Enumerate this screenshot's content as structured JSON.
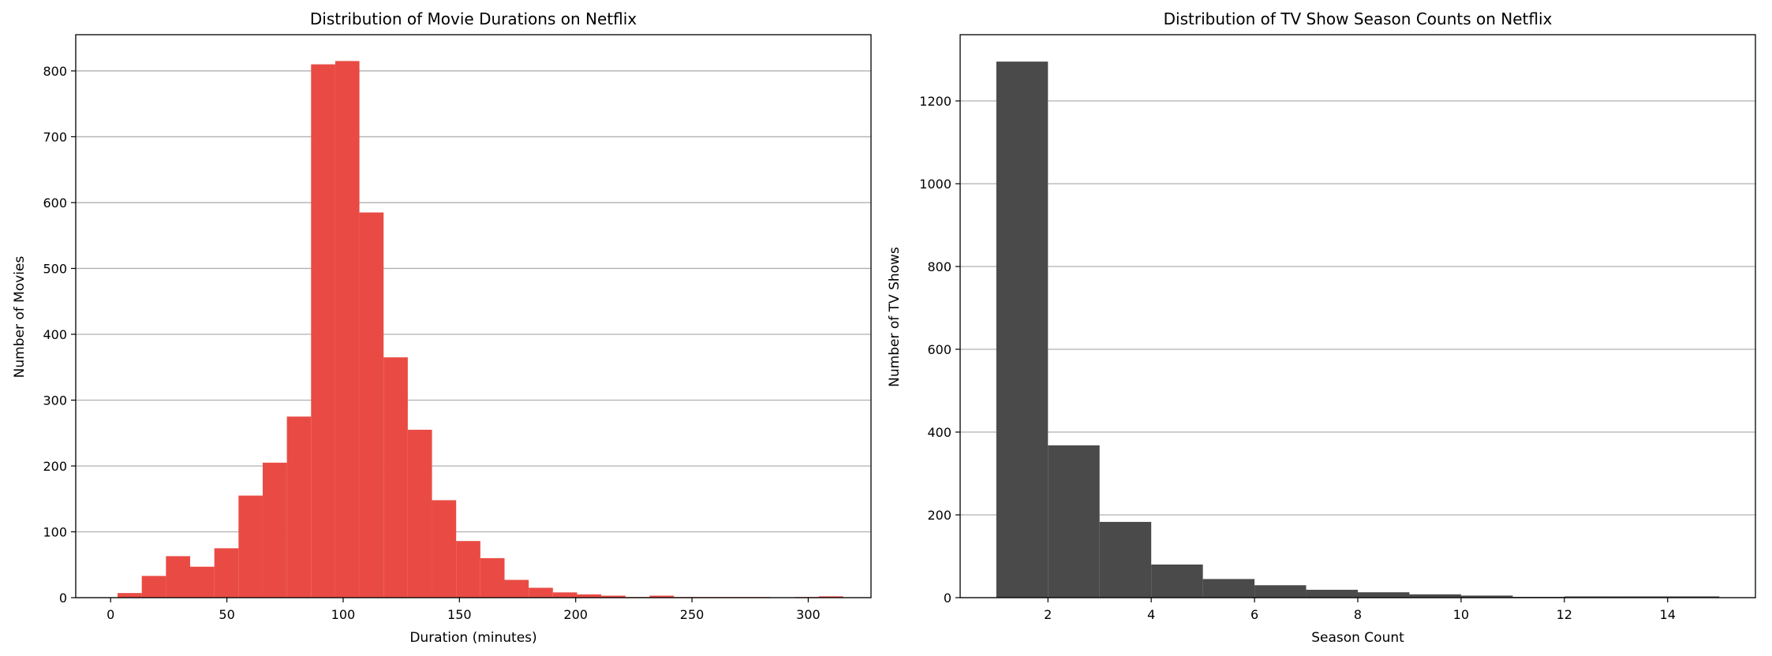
{
  "chart_data": [
    {
      "type": "bar",
      "title": "Distribution of Movie Durations on Netflix",
      "xlabel": "Duration (minutes)",
      "ylabel": "Number of Movies",
      "color": "#e94b44",
      "grid": "y",
      "xlim": [
        -15,
        327
      ],
      "ylim": [
        0,
        855
      ],
      "xticks": [
        0,
        50,
        100,
        150,
        200,
        250,
        300
      ],
      "yticks": [
        0,
        100,
        200,
        300,
        400,
        500,
        600,
        700,
        800
      ],
      "bins": [
        [
          3,
          13.4,
          7
        ],
        [
          13.4,
          23.8,
          33
        ],
        [
          23.8,
          34.2,
          63
        ],
        [
          34.2,
          44.6,
          47
        ],
        [
          44.6,
          55,
          75
        ],
        [
          55,
          65.4,
          155
        ],
        [
          65.4,
          75.8,
          205
        ],
        [
          75.8,
          86.2,
          275
        ],
        [
          86.2,
          96.6,
          810
        ],
        [
          96.6,
          107,
          815
        ],
        [
          107,
          117.4,
          585
        ],
        [
          117.4,
          127.8,
          365
        ],
        [
          127.8,
          138.2,
          255
        ],
        [
          138.2,
          148.6,
          148
        ],
        [
          148.6,
          159,
          86
        ],
        [
          159,
          169.4,
          60
        ],
        [
          169.4,
          179.8,
          27
        ],
        [
          179.8,
          190.2,
          15
        ],
        [
          190.2,
          200.6,
          8
        ],
        [
          200.6,
          211,
          5
        ],
        [
          211,
          221.4,
          3
        ],
        [
          221.4,
          231.8,
          1
        ],
        [
          231.8,
          242.2,
          3
        ],
        [
          242.2,
          252.6,
          1
        ],
        [
          252.6,
          263,
          1
        ],
        [
          263,
          273.4,
          1
        ],
        [
          273.4,
          283.8,
          1
        ],
        [
          283.8,
          294.2,
          0
        ],
        [
          294.2,
          304.6,
          1
        ],
        [
          304.6,
          315,
          2
        ]
      ]
    },
    {
      "type": "bar",
      "title": "Distribution of TV Show Season Counts on Netflix",
      "xlabel": "Season Count",
      "ylabel": "Number of TV Shows",
      "color": "#4a4a4a",
      "grid": "y",
      "xlim": [
        0.3,
        15.7
      ],
      "ylim": [
        0,
        1360
      ],
      "xticks": [
        2,
        4,
        6,
        8,
        10,
        12,
        14
      ],
      "yticks": [
        0,
        200,
        400,
        600,
        800,
        1000,
        1200
      ],
      "bins": [
        [
          1,
          2,
          1295
        ],
        [
          2,
          3,
          368
        ],
        [
          3,
          4,
          183
        ],
        [
          4,
          5,
          80
        ],
        [
          5,
          6,
          45
        ],
        [
          6,
          7,
          30
        ],
        [
          7,
          8,
          19
        ],
        [
          8,
          9,
          13
        ],
        [
          9,
          10,
          8
        ],
        [
          10,
          11,
          5
        ],
        [
          11,
          12,
          2
        ],
        [
          12,
          13,
          3
        ],
        [
          13,
          14,
          3
        ],
        [
          14,
          15,
          3
        ]
      ]
    }
  ]
}
